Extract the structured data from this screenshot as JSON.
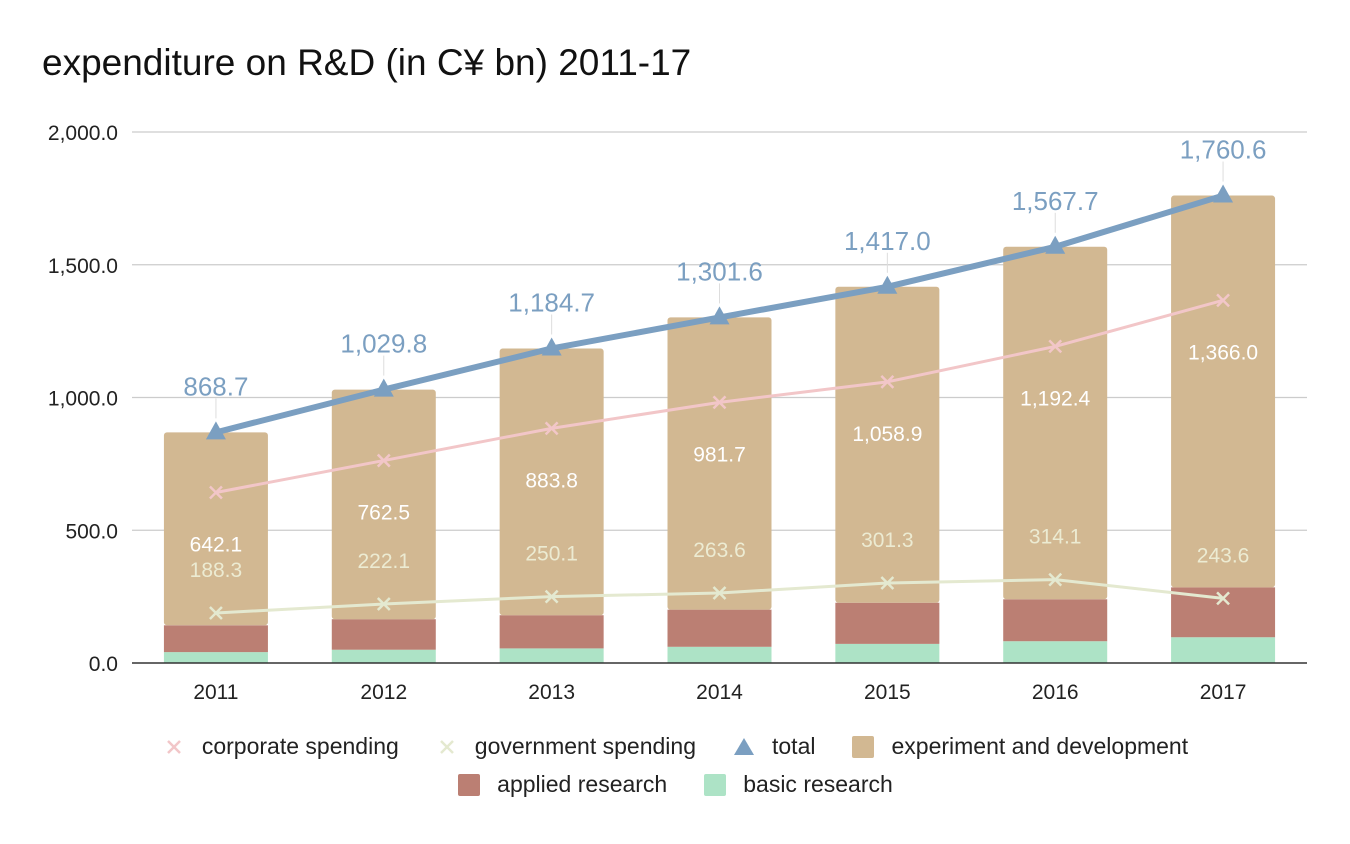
{
  "title": "expenditure on R&D (in C¥ bn) 2011-17",
  "legend": {
    "row1": [
      {
        "label": "corporate spending",
        "icon": "x-marker-icon",
        "color": "#f2c6c8"
      },
      {
        "label": "government spending",
        "icon": "x-marker-icon",
        "color": "#e4e9d0"
      },
      {
        "label": "total",
        "icon": "triangle-marker-icon",
        "color": "#7b9fc1"
      },
      {
        "label": "experiment and development",
        "icon": "square-marker-icon",
        "color": "#d2b892"
      }
    ],
    "row2": [
      {
        "label": "applied research",
        "icon": "square-marker-icon",
        "color": "#bb7f73"
      },
      {
        "label": "basic research",
        "icon": "square-marker-icon",
        "color": "#ade3c6"
      }
    ]
  },
  "chart_data": {
    "type": "bar",
    "title": "expenditure on R&D (in C¥ bn) 2011-17",
    "categories": [
      "2011",
      "2012",
      "2013",
      "2014",
      "2015",
      "2016",
      "2017"
    ],
    "ylim": [
      0,
      2000
    ],
    "yticks": [
      "0.0",
      "500.0",
      "1,000.0",
      "1,500.0",
      "2,000.0"
    ],
    "grid": true,
    "legend_position": "bottom",
    "stacked_series": [
      {
        "name": "basic research",
        "color": "#ade3c6",
        "values": [
          41,
          50,
          55,
          61,
          72,
          82,
          97
        ]
      },
      {
        "name": "applied research",
        "color": "#bb7f73",
        "values": [
          101,
          115,
          125,
          140,
          155,
          158,
          188
        ]
      },
      {
        "name": "experiment and development",
        "color": "#d2b892",
        "values": [
          726.7,
          864.8,
          1004.7,
          1100.6,
          1190.0,
          1327.7,
          1475.6
        ]
      }
    ],
    "line_series": [
      {
        "name": "total",
        "color": "#7b9fc1",
        "marker": "triangle",
        "values": [
          868.7,
          1029.8,
          1184.7,
          1301.6,
          1417.0,
          1567.7,
          1760.6
        ],
        "labels": [
          "868.7",
          "1,029.8",
          "1,184.7",
          "1,301.6",
          "1,417.0",
          "1,567.7",
          "1,760.6"
        ]
      },
      {
        "name": "corporate spending",
        "color": "#f2c6c8",
        "marker": "x",
        "values": [
          642.1,
          762.5,
          883.8,
          981.7,
          1058.9,
          1192.4,
          1366.0
        ],
        "labels": [
          "642.1",
          "762.5",
          "883.8",
          "981.7",
          "1,058.9",
          "1,192.4",
          "1,366.0"
        ]
      },
      {
        "name": "government spending",
        "color": "#e4e9d0",
        "marker": "x",
        "values": [
          188.3,
          222.1,
          250.1,
          263.6,
          301.3,
          314.1,
          243.6
        ],
        "labels": [
          "188.3",
          "222.1",
          "250.1",
          "263.6",
          "301.3",
          "314.1",
          "243.6"
        ]
      }
    ]
  }
}
